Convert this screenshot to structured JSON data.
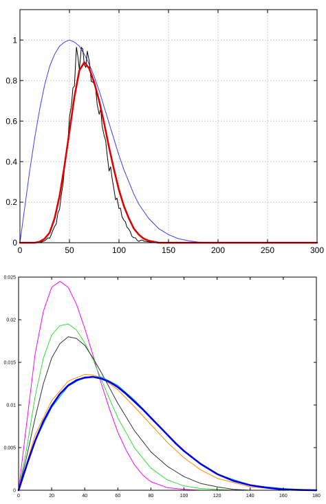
{
  "chart_data": [
    {
      "type": "line",
      "title": "",
      "xlabel": "",
      "ylabel": "",
      "xlim": [
        0,
        300
      ],
      "ylim": [
        0,
        1.15
      ],
      "grid": true,
      "xticks": [
        0,
        50,
        100,
        150,
        200,
        250,
        300
      ],
      "yticks": [
        0,
        0.2,
        0.4,
        0.6,
        0.8,
        1
      ],
      "xtick_labels": [
        "0",
        "50",
        "100",
        "150",
        "200",
        "250",
        "300"
      ],
      "ytick_labels": [
        "0",
        "0.2",
        "0.4",
        "0.6",
        "0.8",
        "1"
      ],
      "series": [
        {
          "color": "#3b3bff",
          "style": "thin",
          "x": [
            0,
            5,
            10,
            15,
            20,
            25,
            30,
            35,
            40,
            45,
            50,
            55,
            60,
            65,
            70,
            75,
            80,
            85,
            90,
            95,
            100,
            105,
            110,
            115,
            120,
            130,
            140,
            150,
            160,
            170,
            180,
            190
          ],
          "y": [
            0,
            0.18,
            0.36,
            0.52,
            0.66,
            0.78,
            0.87,
            0.93,
            0.97,
            0.99,
            1.0,
            0.99,
            0.97,
            0.93,
            0.88,
            0.82,
            0.75,
            0.67,
            0.59,
            0.51,
            0.43,
            0.36,
            0.3,
            0.24,
            0.19,
            0.12,
            0.07,
            0.04,
            0.02,
            0.01,
            0.003,
            0.0
          ]
        },
        {
          "color": "#000000",
          "style": "noisy",
          "x": [
            0,
            20,
            25,
            30,
            35,
            40,
            42,
            45,
            48,
            50,
            52,
            55,
            57,
            60,
            62,
            65,
            68,
            70,
            72,
            75,
            78,
            80,
            83,
            85,
            88,
            90,
            93,
            95,
            98,
            100,
            103,
            105,
            108,
            110,
            113,
            115,
            120,
            125,
            130,
            135,
            140,
            150,
            300
          ],
          "y": [
            0,
            0,
            0.01,
            0.03,
            0.08,
            0.16,
            0.25,
            0.35,
            0.5,
            0.62,
            0.7,
            0.8,
            0.96,
            0.88,
            1.0,
            0.84,
            0.95,
            0.86,
            0.82,
            0.78,
            0.7,
            0.66,
            0.58,
            0.55,
            0.45,
            0.38,
            0.33,
            0.27,
            0.2,
            0.18,
            0.13,
            0.12,
            0.08,
            0.06,
            0.04,
            0.03,
            0.015,
            0.008,
            0.004,
            0.002,
            0.0,
            0.0,
            0.0
          ]
        },
        {
          "color": "#e00000",
          "style": "thick",
          "x": [
            0,
            15,
            20,
            25,
            30,
            35,
            40,
            45,
            50,
            55,
            60,
            65,
            70,
            75,
            80,
            85,
            90,
            95,
            100,
            105,
            110,
            115,
            120,
            125,
            130,
            140,
            150,
            300
          ],
          "y": [
            0,
            0,
            0.005,
            0.02,
            0.05,
            0.12,
            0.23,
            0.38,
            0.55,
            0.72,
            0.85,
            0.89,
            0.86,
            0.79,
            0.7,
            0.59,
            0.47,
            0.36,
            0.26,
            0.18,
            0.12,
            0.07,
            0.04,
            0.02,
            0.01,
            0.0,
            0.0,
            0.0
          ]
        }
      ]
    },
    {
      "type": "line",
      "title": "",
      "xlabel": "",
      "ylabel": "",
      "xlim": [
        0,
        180
      ],
      "ylim": [
        0,
        0.025
      ],
      "grid": false,
      "xticks": [
        0,
        20,
        40,
        60,
        80,
        100,
        120,
        140,
        160,
        180
      ],
      "yticks": [
        0,
        0.005,
        0.01,
        0.015,
        0.02,
        0.025
      ],
      "xtick_labels": [
        "0",
        "20",
        "40",
        "60",
        "80",
        "100",
        "120",
        "140",
        "160",
        "180"
      ],
      "ytick_labels": [
        "0",
        "0.005",
        "0.01",
        "0.015",
        "0.02",
        "0.025"
      ],
      "series": [
        {
          "color": "#ff00ff",
          "style": "thin",
          "x": [
            0,
            5,
            10,
            15,
            20,
            25,
            30,
            35,
            40,
            45,
            50,
            55,
            60,
            65,
            70,
            75,
            80,
            90,
            100,
            110,
            120
          ],
          "y": [
            0,
            0.008,
            0.016,
            0.021,
            0.0238,
            0.0245,
            0.0238,
            0.0218,
            0.019,
            0.0158,
            0.0125,
            0.0095,
            0.0068,
            0.0047,
            0.003,
            0.0018,
            0.001,
            0.0003,
            0.0001,
            0.0,
            0.0
          ]
        },
        {
          "color": "#33dd33",
          "style": "thin",
          "x": [
            0,
            5,
            10,
            15,
            20,
            25,
            30,
            35,
            40,
            45,
            50,
            55,
            60,
            70,
            80,
            90,
            100,
            110,
            120,
            130
          ],
          "y": [
            0,
            0.005,
            0.011,
            0.0155,
            0.0182,
            0.0193,
            0.0195,
            0.0188,
            0.0173,
            0.0153,
            0.013,
            0.0107,
            0.0085,
            0.005,
            0.0026,
            0.0012,
            0.0005,
            0.0002,
            0.0001,
            0.0
          ]
        },
        {
          "color": "#333333",
          "style": "thin",
          "x": [
            0,
            5,
            10,
            15,
            20,
            25,
            30,
            35,
            40,
            45,
            50,
            55,
            60,
            70,
            80,
            90,
            100,
            110,
            120,
            130,
            140
          ],
          "y": [
            0,
            0.004,
            0.0085,
            0.0125,
            0.0155,
            0.0172,
            0.018,
            0.0178,
            0.017,
            0.0155,
            0.0138,
            0.012,
            0.0102,
            0.007,
            0.0045,
            0.0028,
            0.0016,
            0.0008,
            0.0004,
            0.0001,
            0.0
          ]
        },
        {
          "color": "#ff8800",
          "style": "thin",
          "x": [
            0,
            10,
            20,
            30,
            40,
            45,
            50,
            60,
            70,
            80,
            90,
            100,
            110,
            120,
            140,
            160,
            180
          ],
          "y": [
            0,
            0.0065,
            0.0105,
            0.0128,
            0.0136,
            0.0135,
            0.0132,
            0.0118,
            0.0098,
            0.0077,
            0.0056,
            0.0038,
            0.0024,
            0.0014,
            0.0004,
            0.0001,
            0.0
          ]
        },
        {
          "color": "#00aaaa",
          "style": "thin",
          "x": [
            0,
            10,
            20,
            30,
            40,
            50,
            60,
            70,
            80,
            90,
            100,
            110,
            120,
            140,
            160,
            180
          ],
          "y": [
            0,
            0.0058,
            0.0097,
            0.0122,
            0.0133,
            0.0133,
            0.0123,
            0.0106,
            0.0086,
            0.0065,
            0.0046,
            0.0031,
            0.0019,
            0.0006,
            0.0002,
            0.0
          ]
        },
        {
          "color": "#0000ee",
          "style": "thick",
          "x": [
            0,
            5,
            10,
            15,
            20,
            25,
            30,
            35,
            40,
            45,
            50,
            55,
            60,
            65,
            70,
            75,
            80,
            85,
            90,
            95,
            100,
            110,
            120,
            130,
            140,
            150,
            160,
            170,
            180
          ],
          "y": [
            0,
            0.003,
            0.0058,
            0.0081,
            0.0099,
            0.0113,
            0.0123,
            0.0129,
            0.0132,
            0.0133,
            0.0131,
            0.0127,
            0.0121,
            0.0113,
            0.0104,
            0.0095,
            0.0085,
            0.0075,
            0.0065,
            0.0055,
            0.0046,
            0.0031,
            0.0019,
            0.0011,
            0.0006,
            0.0003,
            0.0001,
            3e-05,
            0.0
          ]
        }
      ]
    }
  ]
}
